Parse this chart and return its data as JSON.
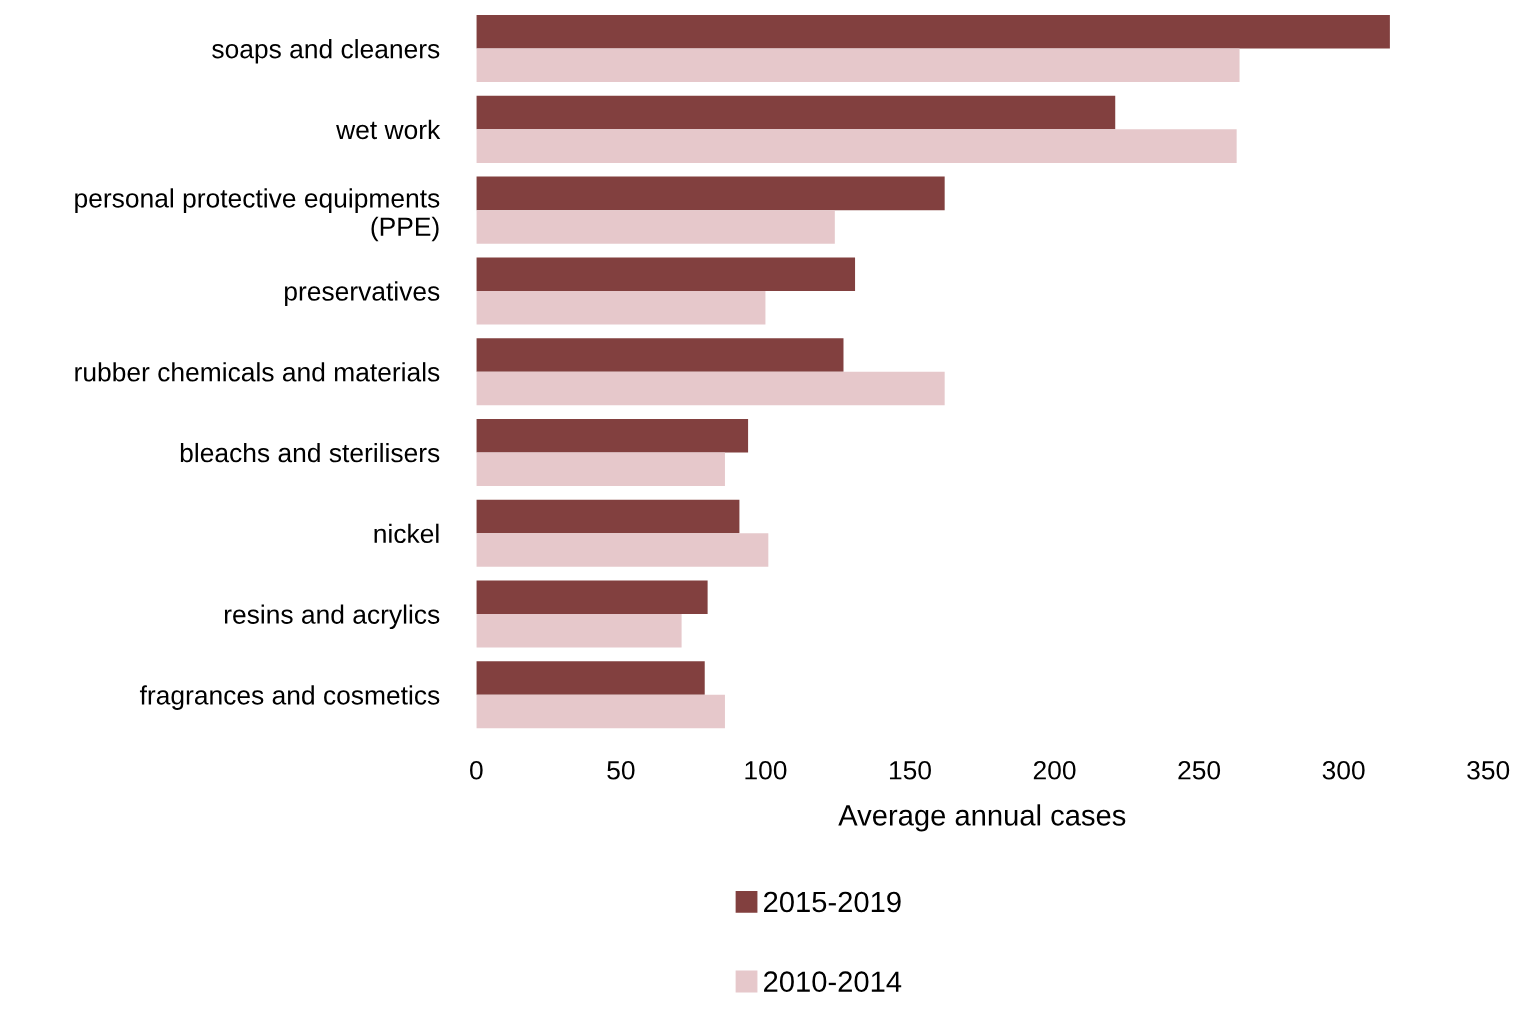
{
  "chart_data": {
    "type": "bar",
    "orientation": "horizontal",
    "xlabel": "Average annual cases",
    "categories": [
      "soaps and cleaners",
      "wet work",
      "personal protective equipments\n(PPE)",
      "preservatives",
      "rubber chemicals and materials",
      "bleachs and sterilisers",
      "nickel",
      "resins and acrylics",
      "fragrances and cosmetics"
    ],
    "series": [
      {
        "name": "2015-2019",
        "color": "#82403f",
        "values": [
          316,
          221,
          162,
          131,
          127,
          94,
          91,
          80,
          79
        ]
      },
      {
        "name": "2010-2014",
        "color": "#e6c8cb",
        "values": [
          264,
          263,
          124,
          100,
          162,
          86,
          101,
          71,
          86
        ]
      }
    ],
    "xlim": [
      0,
      350
    ],
    "xticks": [
      0,
      50,
      100,
      150,
      200,
      250,
      300,
      350
    ],
    "grid": false,
    "legend": "bottom"
  }
}
